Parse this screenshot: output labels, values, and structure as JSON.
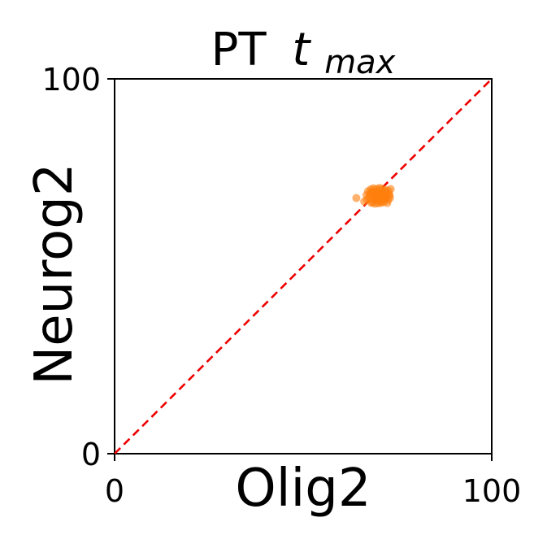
{
  "chart_data": {
    "type": "scatter",
    "title": "PT",
    "title_math": "t",
    "title_math_sub": "max",
    "xlabel": "Olig2",
    "ylabel": "Neurog2",
    "xlim": [
      0,
      100
    ],
    "ylim": [
      0,
      100
    ],
    "x_ticks": [
      "0",
      "100"
    ],
    "y_ticks": [
      "0",
      "100"
    ],
    "grid": false,
    "reference_line": {
      "x": [
        0,
        100
      ],
      "y": [
        0,
        100
      ],
      "style": "dashed",
      "color": "#ee0000"
    },
    "point_color": "#ff7f0e",
    "series": [
      {
        "points": [
          [
            64.1,
            68.2
          ],
          [
            66.2,
            67.3
          ],
          [
            67.0,
            67.8
          ],
          [
            67.5,
            68.5
          ],
          [
            68.0,
            68.0
          ],
          [
            68.3,
            67.2
          ],
          [
            68.8,
            68.8
          ],
          [
            69.1,
            67.6
          ],
          [
            69.5,
            68.3
          ],
          [
            70.0,
            67.9
          ],
          [
            70.4,
            68.6
          ],
          [
            70.8,
            67.4
          ],
          [
            71.2,
            68.1
          ],
          [
            71.5,
            69.0
          ],
          [
            72.0,
            68.4
          ],
          [
            72.5,
            67.7
          ],
          [
            73.0,
            68.2
          ],
          [
            67.8,
            69.3
          ],
          [
            68.5,
            69.6
          ],
          [
            69.2,
            69.9
          ],
          [
            70.0,
            70.2
          ],
          [
            70.7,
            69.7
          ],
          [
            71.4,
            70.0
          ],
          [
            72.1,
            69.5
          ],
          [
            72.8,
            69.2
          ],
          [
            66.8,
            69.0
          ],
          [
            67.2,
            70.0
          ],
          [
            67.9,
            70.5
          ],
          [
            68.6,
            70.8
          ],
          [
            69.4,
            70.6
          ],
          [
            70.2,
            70.9
          ],
          [
            71.0,
            70.7
          ],
          [
            71.8,
            70.4
          ],
          [
            72.6,
            70.1
          ],
          [
            73.2,
            70.6
          ],
          [
            68.1,
            66.9
          ],
          [
            69.0,
            66.7
          ],
          [
            69.8,
            66.8
          ],
          [
            70.6,
            66.9
          ],
          [
            71.3,
            67.1
          ],
          [
            72.3,
            66.9
          ],
          [
            68.9,
            68.0
          ],
          [
            69.7,
            68.9
          ],
          [
            70.5,
            69.1
          ],
          [
            71.1,
            68.8
          ],
          [
            71.7,
            67.9
          ],
          [
            70.3,
            67.3
          ],
          [
            69.4,
            69.3
          ],
          [
            68.2,
            69.9
          ],
          [
            72.9,
            68.9
          ]
        ]
      }
    ]
  }
}
